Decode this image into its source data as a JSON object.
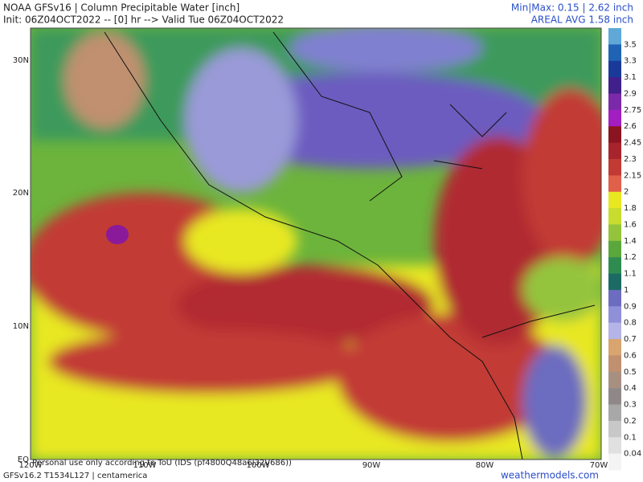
{
  "header": {
    "title": "NOAA GFSv16 | Column Precipitable Water [inch]",
    "init": "Init: 06Z04OCT2022 -- [0] hr --> Valid Tue 06Z04OCT2022",
    "minmax": "Min|Max: 0.15 | 2.62 inch",
    "areal_avg": "AREAL AVG 1.58 inch"
  },
  "map": {
    "lat_labels": [
      "30N",
      "20N",
      "10N",
      "EQ"
    ],
    "lon_labels": [
      "120W",
      "110W",
      "100W",
      "90W",
      "80W",
      "70W"
    ],
    "watermark": "Personal use only according to ToU (IDS (pf4800Q48a6l32V686))"
  },
  "colorbar": {
    "labels": [
      3.5,
      3.3,
      3.1,
      2.9,
      2.75,
      2.6,
      2.45,
      2.3,
      2.15,
      2,
      1.8,
      1.6,
      1.4,
      1.2,
      1.1,
      1,
      0.9,
      0.8,
      0.7,
      0.6,
      0.5,
      0.4,
      0.3,
      0.2,
      0.1,
      0.04
    ],
    "colors": [
      "#5fa8d8",
      "#1f64b4",
      "#1a3a9a",
      "#40208a",
      "#7a2aa8",
      "#a21ec0",
      "#8a1420",
      "#a8242c",
      "#c23a34",
      "#e0604a",
      "#e8e820",
      "#c8dc30",
      "#94c43c",
      "#5aa83c",
      "#2e8c50",
      "#1c6a64",
      "#6c6cc0",
      "#9090d8",
      "#b4b4e6",
      "#d8a470",
      "#c09070",
      "#a89080",
      "#908888",
      "#a8a8a8",
      "#c8c8c8",
      "#e0e0e0",
      "#f4f4f4"
    ]
  },
  "footer": {
    "model": "GFSv16.2 T1534L127 | centamerica",
    "site": "weathermodels.com"
  }
}
